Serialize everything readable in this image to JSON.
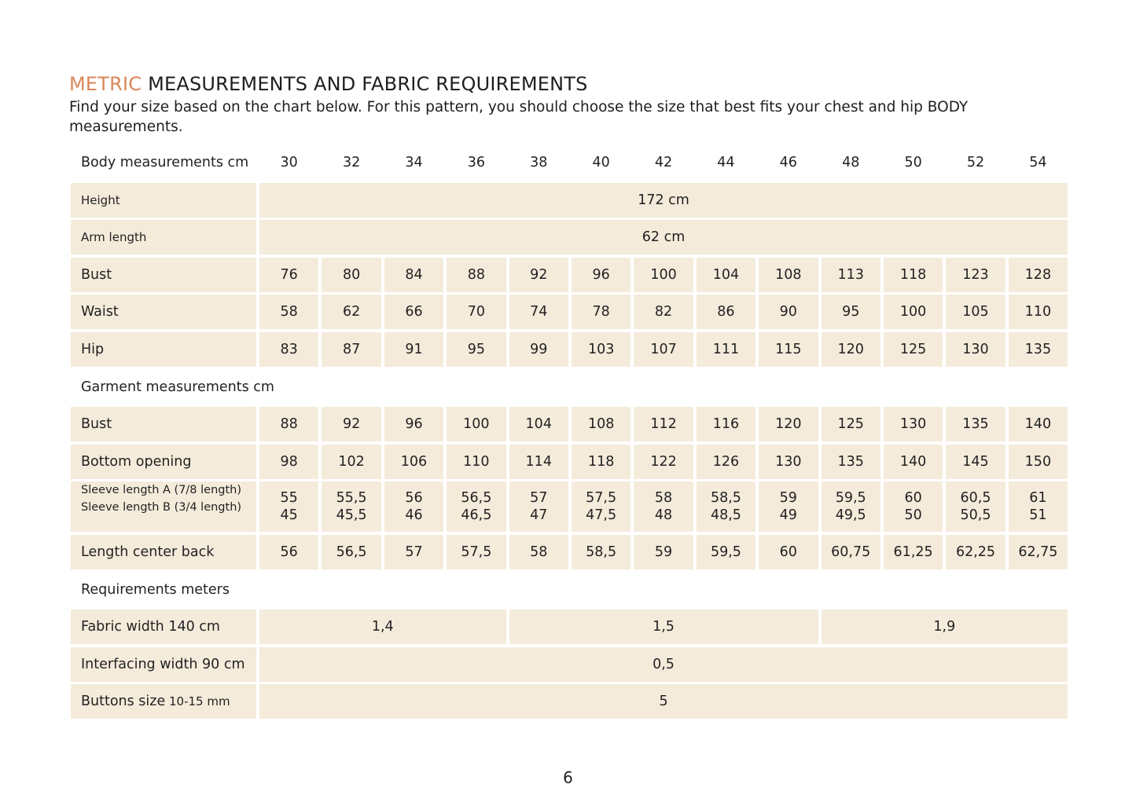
{
  "heading": {
    "accent": "METRIC",
    "rest": " MEASUREMENTS AND FABRIC REQUIREMENTS",
    "intro": "Find your size based on the chart below. For this pattern, you should choose the size that best fits your chest and hip BODY measurements."
  },
  "sizes_header": "Body measurements cm",
  "sizes": [
    "30",
    "32",
    "34",
    "36",
    "38",
    "40",
    "42",
    "44",
    "46",
    "48",
    "50",
    "52",
    "54"
  ],
  "body": {
    "height": {
      "label": "Height",
      "value": "172 cm"
    },
    "arm_length": {
      "label": "Arm length",
      "value": "62 cm"
    },
    "bust": {
      "label": "Bust",
      "values": [
        "76",
        "80",
        "84",
        "88",
        "92",
        "96",
        "100",
        "104",
        "108",
        "113",
        "118",
        "123",
        "128"
      ]
    },
    "waist": {
      "label": "Waist",
      "values": [
        "58",
        "62",
        "66",
        "70",
        "74",
        "78",
        "82",
        "86",
        "90",
        "95",
        "100",
        "105",
        "110"
      ]
    },
    "hip": {
      "label": "Hip",
      "values": [
        "83",
        "87",
        "91",
        "95",
        "99",
        "103",
        "107",
        "111",
        "115",
        "120",
        "125",
        "130",
        "135"
      ]
    }
  },
  "garment_header": "Garment measurements cm",
  "garment": {
    "bust": {
      "label": "Bust",
      "values": [
        "88",
        "92",
        "96",
        "100",
        "104",
        "108",
        "112",
        "116",
        "120",
        "125",
        "130",
        "135",
        "140"
      ]
    },
    "bottom_opening": {
      "label": "Bottom opening",
      "values": [
        "98",
        "102",
        "106",
        "110",
        "114",
        "118",
        "122",
        "126",
        "130",
        "135",
        "140",
        "145",
        "150"
      ]
    },
    "sleeve": {
      "label_a": "Sleeve length  A (7/8 length)",
      "label_b": "Sleeve length B (3/4 length)",
      "values_a": [
        "55",
        "55,5",
        "56",
        "56,5",
        "57",
        "57,5",
        "58",
        "58,5",
        "59",
        "59,5",
        "60",
        "60,5",
        "61"
      ],
      "values_b": [
        "45",
        "45,5",
        "46",
        "46,5",
        "47",
        "47,5",
        "48",
        "48,5",
        "49",
        "49,5",
        "50",
        "50,5",
        "51"
      ]
    },
    "length_cb": {
      "label": "Length center back",
      "values": [
        "56",
        "56,5",
        "57",
        "57,5",
        "58",
        "58,5",
        "59",
        "59,5",
        "60",
        "60,75",
        "61,25",
        "62,25",
        "62,75"
      ]
    }
  },
  "requirements_header": "Requirements meters",
  "requirements": {
    "fabric": {
      "label": "Fabric width 140 cm",
      "groups": [
        {
          "value": "1,4",
          "span": 4
        },
        {
          "value": "1,5",
          "span": 5
        },
        {
          "value": "1,9",
          "span": 4
        }
      ]
    },
    "interfacing": {
      "label": "Interfacing width 90 cm",
      "value": "0,5"
    },
    "buttons": {
      "label": "Buttons size",
      "label_unit": " 10-15 mm",
      "value": "5"
    }
  },
  "page_number": "6"
}
